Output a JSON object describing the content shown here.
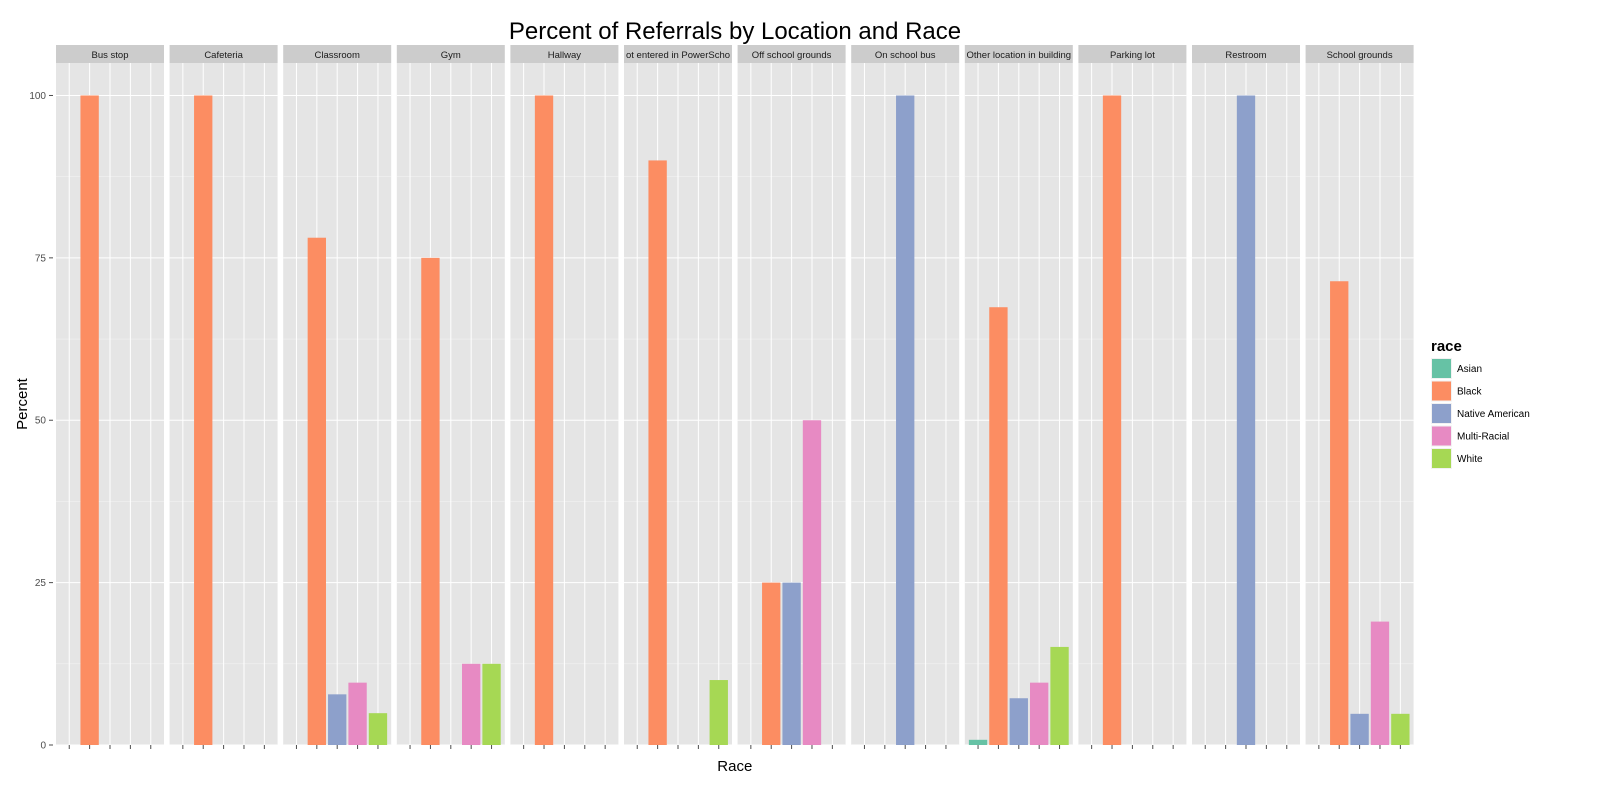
{
  "chart_data": {
    "type": "bar",
    "title": "Percent of Referrals by Location and Race",
    "xlabel": "Race",
    "ylabel": "Percent",
    "ylim": [
      0,
      105
    ],
    "yticks": [
      0,
      25,
      50,
      75,
      100
    ],
    "grid": true,
    "legend": {
      "title": "race",
      "placement": "right"
    },
    "categories": [
      "Asian",
      "Black",
      "Native American",
      "Multi-Racial",
      "White"
    ],
    "colors": [
      "#66c2a5",
      "#fc8d62",
      "#8da0cb",
      "#e78ac3",
      "#a6d854"
    ],
    "facets": [
      {
        "label": "Bus stop",
        "values": [
          0,
          100,
          0,
          0,
          0
        ]
      },
      {
        "label": "Cafeteria",
        "values": [
          0,
          100,
          0,
          0,
          0
        ]
      },
      {
        "label": "Classroom",
        "values": [
          0,
          78.1,
          7.8,
          9.6,
          4.9
        ]
      },
      {
        "label": "Gym",
        "values": [
          0,
          75,
          0,
          12.5,
          12.5
        ]
      },
      {
        "label": "Hallway",
        "values": [
          0,
          100,
          0,
          0,
          0
        ]
      },
      {
        "label": "ot entered in PowerScho",
        "values": [
          0,
          90,
          0,
          0,
          10
        ]
      },
      {
        "label": "Off school grounds",
        "values": [
          0,
          25,
          25,
          50,
          0
        ]
      },
      {
        "label": "On school bus",
        "values": [
          0,
          0,
          100,
          0,
          0
        ]
      },
      {
        "label": "Other location in building",
        "values": [
          0.8,
          67.4,
          7.2,
          9.6,
          15.1
        ]
      },
      {
        "label": "Parking lot",
        "values": [
          0,
          100,
          0,
          0,
          0
        ]
      },
      {
        "label": "Restroom",
        "values": [
          0,
          0,
          100,
          0,
          0
        ]
      },
      {
        "label": "School grounds",
        "values": [
          0,
          71.4,
          4.8,
          19,
          4.8
        ]
      }
    ]
  }
}
